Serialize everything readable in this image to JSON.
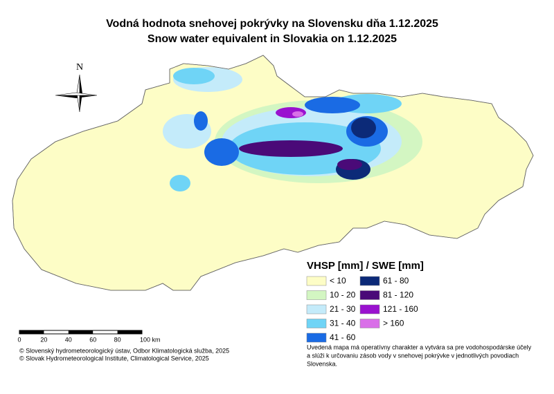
{
  "header": {
    "title_sk": "Vodná hodnota snehovej pokrývky na Slovensku dňa 1.12.2025",
    "title_en": "Snow water equivalent in Slovakia on 1.12.2025"
  },
  "north_label": "N",
  "legend": {
    "title": "VHSP [mm] / SWE [mm]",
    "items": [
      {
        "label": "< 10",
        "color": "#fdfdc6"
      },
      {
        "label": "10 - 20",
        "color": "#d3f6c2"
      },
      {
        "label": "21 - 30",
        "color": "#c4ebfa"
      },
      {
        "label": "31 - 40",
        "color": "#6fd4f6"
      },
      {
        "label": "41 - 60",
        "color": "#1a6be4"
      },
      {
        "label": "61 - 80",
        "color": "#0c2a78"
      },
      {
        "label": "81 - 120",
        "color": "#4a0a78"
      },
      {
        "label": "121 - 160",
        "color": "#9a12cf"
      },
      {
        "label": "> 160",
        "color": "#d96fe8"
      }
    ]
  },
  "scale_bar": {
    "labels": [
      "0",
      "20",
      "40",
      "60",
      "80",
      "100 km"
    ]
  },
  "credits": [
    "© Slovenský hydrometeorologický ústav, Odbor Klimatologická služba, 2025",
    "© Slovak Hydrometeorological Institute, Climatological Service, 2025"
  ],
  "note": [
    "Uvedená mapa má operatívny charakter a vytvára sa pre vodohospodárske účely",
    "a slúži k určovaniu zásob vody v snehovej pokrývke v jednotlivých povodiach",
    "Slovenska."
  ]
}
